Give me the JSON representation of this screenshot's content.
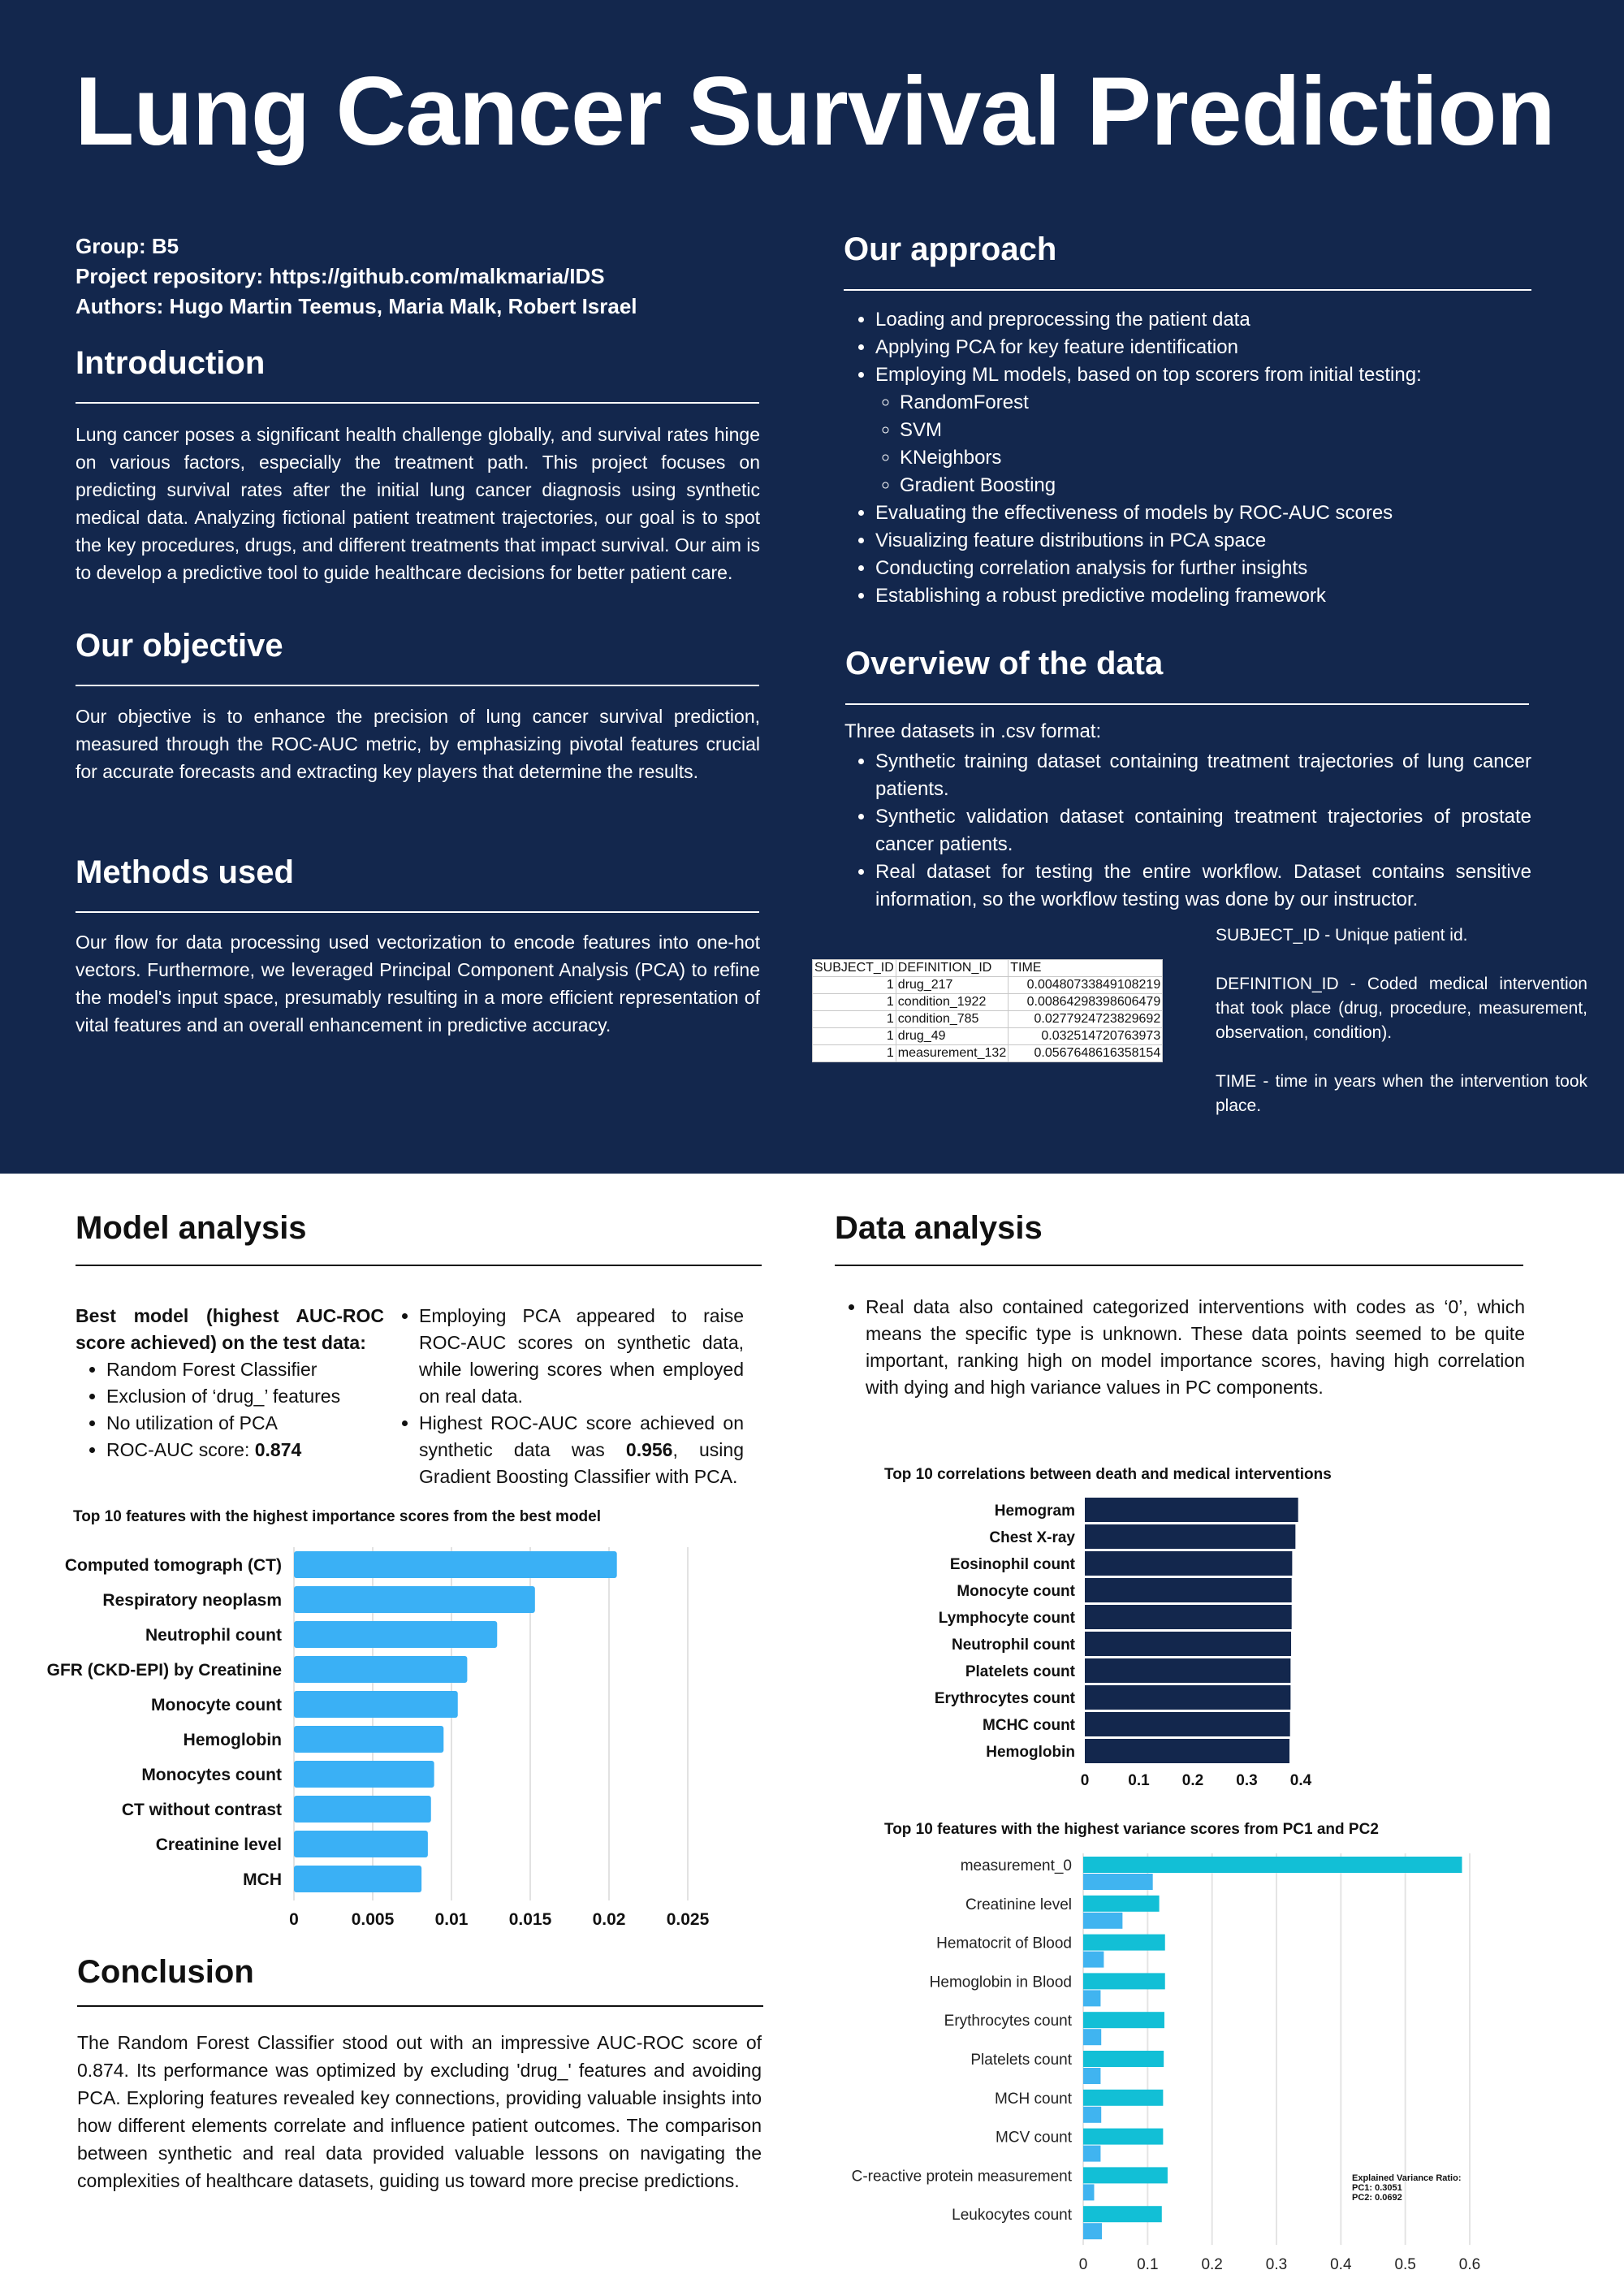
{
  "title": "Lung Cancer Survival Prediction",
  "meta": {
    "group": "Group: B5",
    "repository": "Project repository: https://github.com/malkmaria/IDS",
    "authors": "Authors: Hugo Martin Teemus, Maria Malk, Robert Israel"
  },
  "introduction": {
    "heading": "Introduction",
    "text": "Lung cancer poses a significant health challenge globally, and survival rates hinge on various factors, especially the treatment path. This project focuses on predicting survival rates after the initial lung cancer diagnosis using synthetic medical data. Analyzing fictional patient treatment trajectories, our goal is to spot the key procedures, drugs, and different treatments that impact survival. Our aim is to develop a predictive tool to guide healthcare decisions for better patient care."
  },
  "objective": {
    "heading": "Our objective",
    "text": "Our objective is to enhance the precision of lung cancer survival prediction, measured through the ROC-AUC metric, by emphasizing pivotal features crucial for accurate forecasts and extracting key players that determine the results."
  },
  "methods": {
    "heading": "Methods used",
    "text": "Our flow for data processing used vectorization to encode features into one-hot vectors. Furthermore, we leveraged Principal Component Analysis (PCA) to refine the model's input space, presumably resulting in a more efficient representation of vital features and an overall enhancement in predictive accuracy."
  },
  "approach": {
    "heading": "Our approach",
    "items": [
      "Loading and preprocessing the patient data",
      "Applying PCA for key feature identification",
      "Employing ML models, based on top scorers from initial testing:",
      "Evaluating the effectiveness of models by ROC-AUC scores",
      "Visualizing feature distributions in PCA space",
      "Conducting correlation analysis for further insights",
      "Establishing a robust predictive modeling framework"
    ],
    "models": [
      "RandomForest",
      "SVM",
      "KNeighbors",
      "Gradient Boosting"
    ]
  },
  "overview": {
    "heading": "Overview of the data",
    "intro": "Three datasets in .csv format:",
    "items": [
      "Synthetic training dataset containing treatment trajectories of lung cancer patients.",
      "Synthetic validation dataset containing treatment trajectories of prostate cancer patients.",
      "Real dataset for testing the entire workflow. Dataset contains sensitive information, so the workflow testing was done by our instructor."
    ],
    "table": {
      "headers": [
        "SUBJECT_ID",
        "DEFINITION_ID",
        "TIME"
      ],
      "rows": [
        [
          "1",
          "drug_217",
          "0.00480733849108219"
        ],
        [
          "1",
          "condition_1922",
          "0.00864298398606479"
        ],
        [
          "1",
          "condition_785",
          "0.0277924723829692"
        ],
        [
          "1",
          "drug_49",
          "0.032514720763973"
        ],
        [
          "1",
          "measurement_132",
          "0.0567648616358154"
        ]
      ]
    },
    "definitions": [
      "SUBJECT_ID - Unique patient id.",
      "DEFINITION_ID - Coded medical intervention that took place (drug, procedure, measurement, observation, condition).",
      "TIME - time in years when the intervention took place."
    ]
  },
  "model_analysis": {
    "heading": "Model analysis",
    "best_label": "Best model (highest AUC-ROC score achieved) on the test data:",
    "best_items": [
      "Random Forest Classifier",
      "Exclusion of ‘drug_’ features",
      "No utilization of PCA"
    ],
    "roc_prefix": "ROC-AUC score: ",
    "roc_value": "0.874",
    "pca_note": "Employing PCA appeared to raise ROC-AUC scores on synthetic data, while lowering scores when employed on real data.",
    "highest_part1": "Highest ROC-AUC score achieved on synthetic data was ",
    "highest_value": "0.956",
    "highest_part2": ", using Gradient Boosting Classifier with PCA."
  },
  "data_analysis": {
    "heading": "Data analysis",
    "text": "Real data also contained categorized interventions with codes as ‘0’, which means the specific type is unknown. These data points seemed to be quite important, ranking high on model importance scores, having high correlation with dying and high variance values in PC components."
  },
  "conclusion": {
    "heading": "Conclusion",
    "text": "The Random Forest Classifier stood out with an impressive AUC-ROC score of 0.874. Its performance was optimized by excluding 'drug_' features and avoiding PCA. Exploring features revealed key connections, providing valuable insights into how different elements correlate and influence patient outcomes. The comparison between synthetic and real data provided valuable lessons on navigating the complexities of healthcare datasets, guiding us toward more precise predictions."
  },
  "colors": {
    "navy": "#13274d",
    "light_blue": "#3ab0f5",
    "cyan": "#12bfd6",
    "bar_blue": "#40b4f0"
  },
  "chart_data": [
    {
      "type": "bar",
      "orientation": "horizontal",
      "title": "Top 10 features with the highest importance scores from the best model",
      "categories": [
        "Computed tomograph (CT)",
        "Respiratory neoplasm",
        "Neutrophil count",
        "GFR (CKD-EPI) by Creatinine",
        "Monocyte count",
        "Hemoglobin",
        "Monocytes count",
        "CT without contrast",
        "Creatinine level",
        "MCH"
      ],
      "values": [
        0.0205,
        0.0153,
        0.0129,
        0.011,
        0.0104,
        0.0095,
        0.0089,
        0.0087,
        0.0085,
        0.0081
      ],
      "xlim": [
        0,
        0.025
      ],
      "ticks": [
        "0",
        "0.005",
        "0.01",
        "0.015",
        "0.02",
        "0.025"
      ],
      "color": "#3ab0f5",
      "grid": true
    },
    {
      "type": "bar",
      "orientation": "horizontal",
      "title": "Top 10 correlations between death and medical interventions",
      "categories": [
        "Hemogram",
        "Chest X-ray",
        "Eosinophil count",
        "Monocyte count",
        "Lymphocyte count",
        "Neutrophil count",
        "Platelets count",
        "Erythrocytes count",
        "MCHC count",
        "Hemoglobin"
      ],
      "values": [
        0.395,
        0.39,
        0.384,
        0.383,
        0.383,
        0.382,
        0.381,
        0.381,
        0.38,
        0.379
      ],
      "xlim": [
        0,
        0.4
      ],
      "ticks": [
        "0",
        "0.1",
        "0.2",
        "0.3",
        "0.4"
      ],
      "color": "#13274d",
      "grid": false
    },
    {
      "type": "bar",
      "orientation": "horizontal",
      "title": "Top 10 features with the highest variance scores from PC1 and PC2",
      "categories": [
        "measurement_0",
        "Creatinine level",
        "Hematocrit of Blood",
        "Hemoglobin in Blood",
        "Erythrocytes count",
        "Platelets count",
        "MCH count",
        "MCV count",
        "C-reactive protein measurement",
        "Leukocytes count"
      ],
      "series": [
        {
          "name": "PC1",
          "values": [
            0.588,
            0.118,
            0.127,
            0.127,
            0.126,
            0.125,
            0.124,
            0.124,
            0.131,
            0.122
          ]
        },
        {
          "name": "PC2",
          "values": [
            0.108,
            0.061,
            0.032,
            0.027,
            0.028,
            0.027,
            0.028,
            0.027,
            0.017,
            0.029
          ]
        }
      ],
      "xlim": [
        0,
        0.6
      ],
      "ticks": [
        "0",
        "0.1",
        "0.2",
        "0.3",
        "0.4",
        "0.5",
        "0.6"
      ],
      "colors": [
        "#12bfd6",
        "#40b4f0"
      ],
      "grid": true,
      "annotation": [
        "Explained Variance Ratio:",
        "PC1: 0.3051",
        "PC2: 0.0692"
      ]
    }
  ]
}
